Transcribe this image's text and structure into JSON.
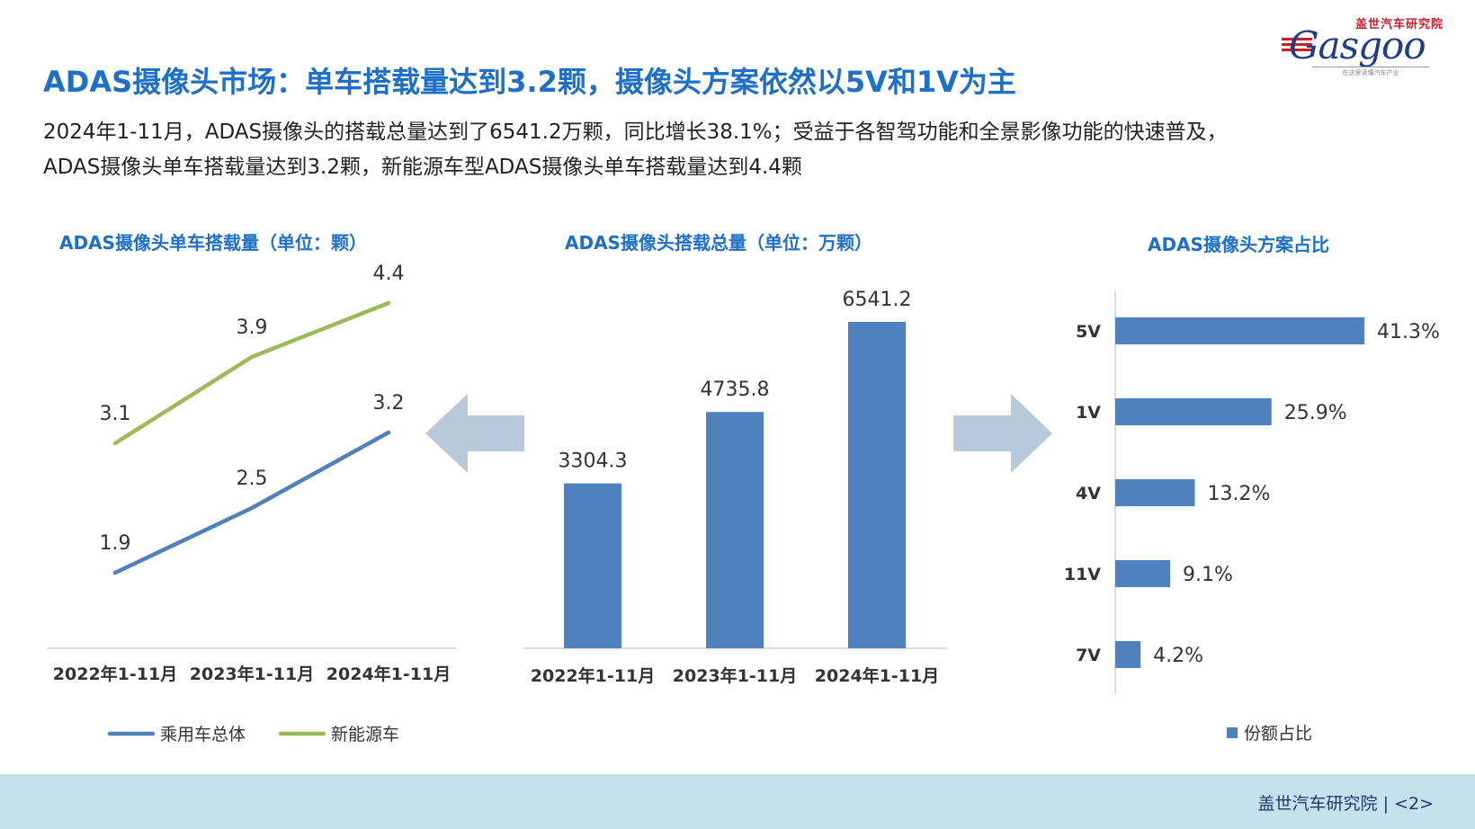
{
  "header": {
    "logo_cn": "盖世汽车研究院",
    "logo_en": "Gasgoo",
    "logo_tagline": "在这里读懂汽车产业",
    "title": "ADAS摄像头市场：单车搭载量达到3.2颗，摄像头方案依然以5V和1V为主",
    "intro_line1": "2024年1-11月，ADAS摄像头的搭载总量达到了6541.2万颗，同比增长38.1%；受益于各智驾功能和全景影像功能的快速普及，",
    "intro_line2": "ADAS摄像头单车搭载量达到3.2颗，新能源车型ADAS摄像头单车搭载量达到4.4颗"
  },
  "footer": {
    "org": "盖世汽车研究院",
    "page": "2"
  },
  "colors": {
    "title_blue": "#1e6fc8",
    "bar_blue": "#4f81bd",
    "line_blue": "#4f81bd",
    "line_green": "#9bbb59",
    "arrow": "#b8c9d9",
    "footer_bg": "#c5e1eb"
  },
  "chart_data": [
    {
      "type": "line",
      "title": "ADAS摄像头单车搭载量（单位：颗）",
      "categories": [
        "2022年1-11月",
        "2023年1-11月",
        "2024年1-11月"
      ],
      "series": [
        {
          "name": "乘用车总体",
          "values": [
            1.9,
            2.5,
            3.2
          ],
          "labels": [
            "1.9",
            "2.5",
            "3.2"
          ]
        },
        {
          "name": "新能源车",
          "values": [
            3.1,
            3.9,
            4.4
          ],
          "labels": [
            "3.1",
            "3.9",
            "4.4"
          ]
        }
      ],
      "ylim": [
        0,
        6
      ],
      "legend": "bottom",
      "grid": false
    },
    {
      "type": "bar",
      "title": "ADAS摄像头搭载总量（单位：万颗）",
      "categories": [
        "2022年1-11月",
        "2023年1-11月",
        "2024年1-11月"
      ],
      "values": [
        3304.3,
        4735.8,
        6541.2
      ],
      "labels": [
        "3304.3",
        "4735.8",
        "6541.2"
      ],
      "ylim": [
        0,
        6541.2
      ],
      "grid": false
    },
    {
      "type": "bar",
      "orientation": "horizontal",
      "title": "ADAS摄像头方案占比",
      "categories": [
        "5V",
        "1V",
        "4V",
        "11V",
        "7V"
      ],
      "values": [
        41.3,
        25.9,
        13.2,
        9.1,
        4.2
      ],
      "labels": [
        "41.3%",
        "25.9%",
        "13.2%",
        "9.1%",
        "4.2%"
      ],
      "series_name": "份额占比",
      "xlim": [
        0,
        41.3
      ],
      "legend": "bottom-right",
      "grid": false
    }
  ]
}
